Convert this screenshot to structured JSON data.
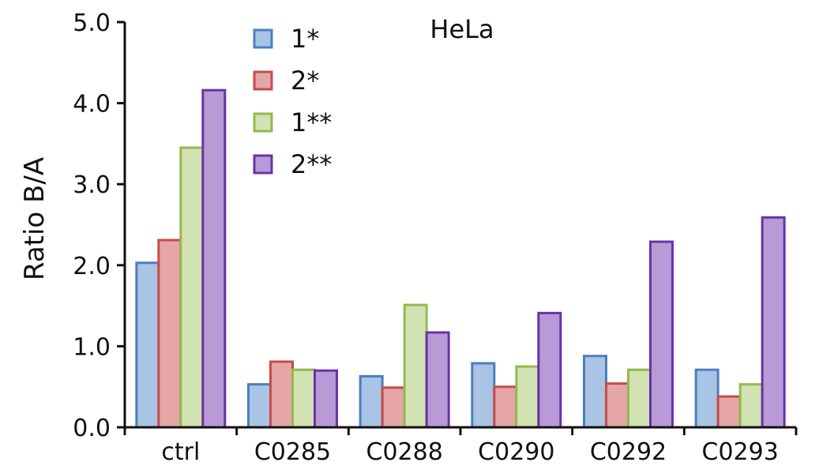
{
  "chart_data": {
    "type": "bar",
    "title": "HeLa",
    "xlabel": "",
    "ylabel": "Ratio B/A",
    "ylim": [
      0,
      5
    ],
    "yticks": [
      "0.0",
      "1.0",
      "2.0",
      "3.0",
      "4.0",
      "5.0"
    ],
    "grid": false,
    "legend_position": "top-center",
    "categories": [
      "ctrl",
      "C0285",
      "C0288",
      "C0290",
      "C0292",
      "C0293"
    ],
    "series": [
      {
        "name": "1*",
        "fill": "#a9c4e4",
        "stroke": "#4a7fc0",
        "values": [
          2.03,
          0.53,
          0.63,
          0.79,
          0.88,
          0.71
        ]
      },
      {
        "name": "2*",
        "fill": "#e4a6a6",
        "stroke": "#c94a4a",
        "values": [
          2.31,
          0.81,
          0.49,
          0.5,
          0.54,
          0.38
        ]
      },
      {
        "name": "1**",
        "fill": "#d3e2b2",
        "stroke": "#93ba4c",
        "values": [
          3.45,
          0.71,
          1.51,
          0.75,
          0.71,
          0.53
        ]
      },
      {
        "name": "2**",
        "fill": "#b79ad6",
        "stroke": "#6a32a8",
        "values": [
          4.16,
          0.7,
          1.17,
          1.41,
          2.29,
          2.59
        ]
      }
    ]
  }
}
